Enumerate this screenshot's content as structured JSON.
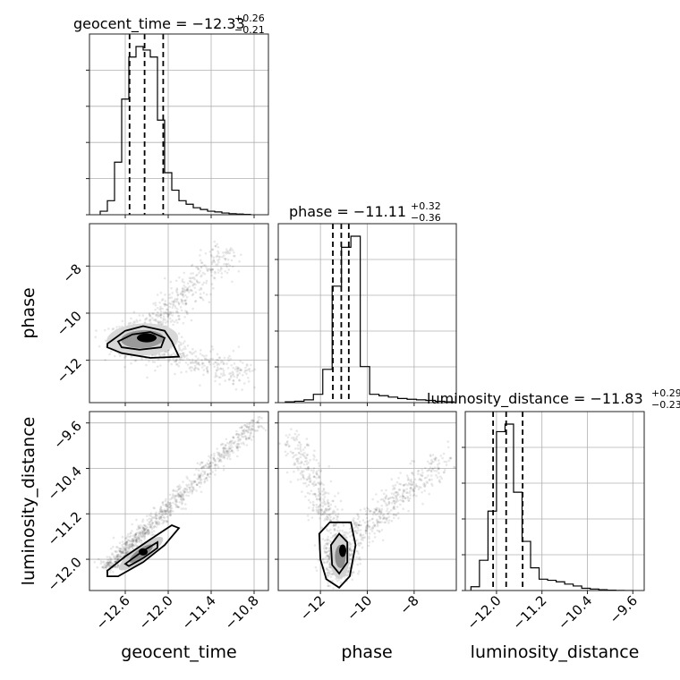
{
  "chart_data": {
    "type": "corner",
    "parameters": [
      "geocent_time",
      "phase",
      "luminosity_distance"
    ],
    "axis_labels": {
      "geocent_time": "geocent_time",
      "phase": "phase",
      "luminosity_distance": "luminosity_distance"
    },
    "ranges": {
      "geocent_time": [
        -13.1,
        -10.6
      ],
      "phase": [
        -13.8,
        -6.2
      ],
      "luminosity_distance": [
        -12.55,
        -9.4
      ]
    },
    "ticks": {
      "geocent_time": {
        "values": [
          -12.6,
          -12.0,
          -11.4,
          -10.8
        ],
        "labels": [
          "−12.6",
          "−12.0",
          "−11.4",
          "−10.8"
        ]
      },
      "phase": {
        "values": [
          -12,
          -10,
          -8
        ],
        "labels": [
          "−12",
          "−10",
          "−8"
        ]
      },
      "luminosity_distance": {
        "values": [
          -12.0,
          -11.2,
          -10.4,
          -9.6
        ],
        "labels": [
          "−12.0",
          "−11.2",
          "−10.4",
          "−9.6"
        ]
      }
    },
    "titles": [
      {
        "param": "geocent_time",
        "main": "geocent_time = −12.33",
        "sup": "+0.26",
        "sub": "−0.21"
      },
      {
        "param": "phase",
        "main": "phase = −11.11",
        "sup": "+0.32",
        "sub": "−0.36"
      },
      {
        "param": "luminosity_distance",
        "main": "luminosity_distance = −11.83",
        "sup": "+0.29",
        "sub": "−0.23"
      }
    ],
    "quantiles": {
      "geocent_time": [
        -12.54,
        -12.33,
        -12.07
      ],
      "phase": [
        -11.47,
        -11.11,
        -10.79
      ],
      "luminosity_distance": [
        -12.06,
        -11.83,
        -11.54
      ]
    },
    "histograms": {
      "geocent_time": {
        "edges": [
          -12.95,
          -12.85,
          -12.75,
          -12.65,
          -12.55,
          -12.45,
          -12.35,
          -12.25,
          -12.15,
          -12.05,
          -11.95,
          -11.85,
          -11.75,
          -11.65,
          -11.55,
          -11.45,
          -11.35,
          -11.25,
          -11.15,
          -11.05,
          -10.95,
          -10.85
        ],
        "counts": [
          1,
          4,
          15,
          33,
          45,
          48,
          47,
          45,
          27,
          12,
          7,
          4,
          3,
          2,
          1.5,
          1,
          0.8,
          0.5,
          0.3,
          0.2,
          0.1
        ]
      },
      "phase": {
        "edges": [
          -13.5,
          -13.1,
          -12.7,
          -12.3,
          -11.9,
          -11.5,
          -11.1,
          -10.7,
          -10.3,
          -9.9,
          -9.5,
          -9.1,
          -8.7,
          -8.3,
          -7.9,
          -7.5,
          -7.1,
          -6.7,
          -6.3
        ],
        "counts": [
          0.3,
          0.5,
          1,
          3,
          12,
          42,
          56,
          60,
          13,
          3,
          2.5,
          2,
          1.5,
          1.2,
          1,
          0.8,
          0.5,
          0.3
        ]
      },
      "luminosity_distance": {
        "edges": [
          -12.45,
          -12.3,
          -12.15,
          -12.0,
          -11.85,
          -11.7,
          -11.55,
          -11.4,
          -11.25,
          -11.1,
          -10.95,
          -10.8,
          -10.65,
          -10.5,
          -10.35,
          -10.2,
          -10.05,
          -9.9,
          -9.75,
          -9.6
        ],
        "counts": [
          1,
          8,
          21,
          42,
          44,
          26,
          13,
          6,
          3,
          2.7,
          2.3,
          1.7,
          1.2,
          0.6,
          0.4,
          0.2,
          0.1,
          0.05,
          0.02
        ]
      }
    },
    "samples_2d": {
      "phase_vs_geocent_time": {
        "core": {
          "x": -12.38,
          "y": -11.1,
          "sx": 0.22,
          "sy": 0.35
        },
        "arm_upper": {
          "from": [
            -12.2,
            -10.5
          ],
          "to": [
            -11.2,
            -7.4
          ]
        },
        "arm_lower": {
          "from": [
            -12.2,
            -11.6
          ],
          "to": [
            -10.9,
            -12.6
          ]
        }
      },
      "luminosity_distance_vs_geocent_time": {
        "diagonal": {
          "from": [
            -12.85,
            -12.15
          ],
          "to": [
            -10.75,
            -9.55
          ]
        }
      },
      "luminosity_distance_vs_phase": {
        "core": {
          "x": -11.2,
          "y": -11.95,
          "sx": 0.35,
          "sy": 0.22
        },
        "arm_left": {
          "from": [
            -11.6,
            -11.3
          ],
          "to": [
            -13.2,
            -9.9
          ]
        },
        "arm_right": {
          "from": [
            -10.6,
            -11.6
          ],
          "to": [
            -6.6,
            -10.2
          ]
        }
      }
    },
    "grid": true
  }
}
